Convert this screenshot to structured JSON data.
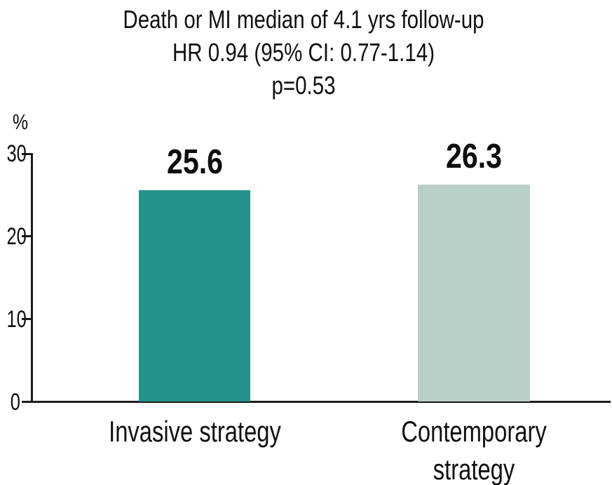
{
  "header": {
    "title_line1": "Death or MI median of 4.1 yrs follow-up",
    "title_line2": "HR 0.94 (95% CI: 0.77-1.14)",
    "title_line3": "p=0.53"
  },
  "chart_data": {
    "type": "bar",
    "title": "Death or MI median of 4.1 yrs follow-up",
    "subtitle": "HR 0.94 (95% CI: 0.77-1.14)",
    "p_value": "p=0.53",
    "categories": [
      "Invasive strategy",
      "Contemporary\nstrategy"
    ],
    "values": [
      25.6,
      26.3
    ],
    "value_labels": [
      "25.6",
      "26.3"
    ],
    "bar_colors": [
      "#239288",
      "#b9cecb"
    ],
    "xlabel": "",
    "ylabel": "%",
    "ylim": [
      0,
      30
    ],
    "yticks": [
      0,
      10,
      20,
      30
    ],
    "grid": false,
    "legend": "none",
    "axis_color": "#1b1b1b",
    "text_color": "#101010"
  }
}
